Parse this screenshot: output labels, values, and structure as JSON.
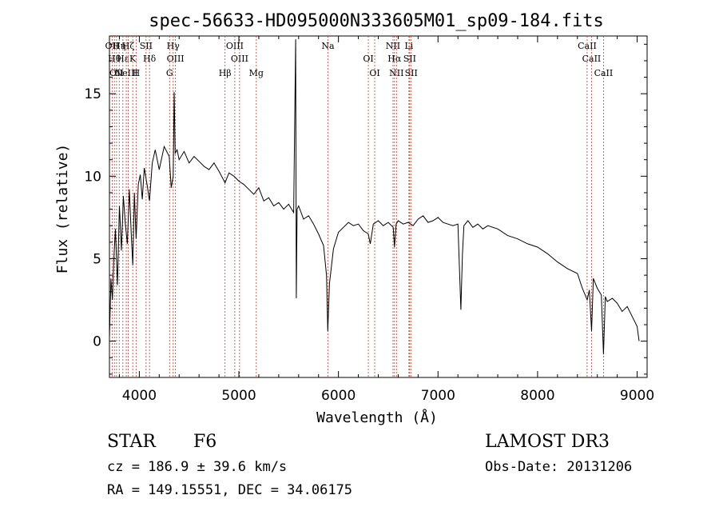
{
  "chart_data": {
    "type": "line",
    "title": "spec-56633-HD095000N333605M01_sp09-184.fits",
    "xlabel": "Wavelength (Å)",
    "ylabel": "Flux (relative)",
    "xlim": [
      3700,
      9100
    ],
    "ylim": [
      -2.2,
      18.5
    ],
    "xticks": [
      4000,
      5000,
      6000,
      7000,
      8000,
      9000
    ],
    "yticks": [
      0,
      5,
      10,
      15
    ],
    "grid": false,
    "series": [
      {
        "x": [
          3700,
          3715,
          3730,
          3745,
          3760,
          3780,
          3800,
          3820,
          3840,
          3860,
          3880,
          3900,
          3920,
          3934,
          3950,
          3968,
          3990,
          4010,
          4030,
          4050,
          4080,
          4102,
          4130,
          4160,
          4200,
          4250,
          4300,
          4320,
          4340,
          4350,
          4360,
          4380,
          4400,
          4450,
          4500,
          4550,
          4600,
          4650,
          4700,
          4750,
          4800,
          4861,
          4900,
          4950,
          5000,
          5050,
          5100,
          5150,
          5200,
          5250,
          5300,
          5350,
          5400,
          5450,
          5500,
          5550,
          5570,
          5577,
          5585,
          5600,
          5650,
          5700,
          5750,
          5800,
          5850,
          5880,
          5893,
          5910,
          5950,
          6000,
          6050,
          6100,
          6150,
          6200,
          6250,
          6300,
          6320,
          6350,
          6400,
          6450,
          6500,
          6550,
          6563,
          6580,
          6600,
          6650,
          6700,
          6750,
          6800,
          6850,
          6900,
          6950,
          7000,
          7050,
          7100,
          7150,
          7200,
          7230,
          7245,
          7260,
          7300,
          7350,
          7400,
          7450,
          7500,
          7600,
          7700,
          7800,
          7900,
          8000,
          8100,
          8200,
          8300,
          8400,
          8450,
          8498,
          8520,
          8542,
          8560,
          8600,
          8640,
          8662,
          8680,
          8700,
          8750,
          8800,
          8850,
          8900,
          8950,
          9000,
          9020
        ],
        "y": [
          0.2,
          3.8,
          2.5,
          5.1,
          6.8,
          3.4,
          8.2,
          5.5,
          8.8,
          7.1,
          5.9,
          9.2,
          6.4,
          4.6,
          9.0,
          6.2,
          9.5,
          10.1,
          8.6,
          10.5,
          9.4,
          8.5,
          10.8,
          11.6,
          10.4,
          11.8,
          11.2,
          9.3,
          10.0,
          15.1,
          11.4,
          11.6,
          11.0,
          11.5,
          10.8,
          11.2,
          10.9,
          10.6,
          10.4,
          10.8,
          10.3,
          9.6,
          10.2,
          10.0,
          9.7,
          9.5,
          9.2,
          8.9,
          9.3,
          8.5,
          8.7,
          8.2,
          8.4,
          8.0,
          8.3,
          7.8,
          18.3,
          2.6,
          8.0,
          8.2,
          7.4,
          7.6,
          7.1,
          6.5,
          5.8,
          4.0,
          0.6,
          3.5,
          5.6,
          6.6,
          6.9,
          7.2,
          7.0,
          7.1,
          6.7,
          6.5,
          5.9,
          7.1,
          7.3,
          7.0,
          7.2,
          6.9,
          5.7,
          7.1,
          7.3,
          7.1,
          7.2,
          7.0,
          7.4,
          7.6,
          7.2,
          7.3,
          7.5,
          7.2,
          7.1,
          7.0,
          7.1,
          1.9,
          5.2,
          7.0,
          7.3,
          6.9,
          7.1,
          6.8,
          7.0,
          6.8,
          6.4,
          6.2,
          5.9,
          5.7,
          5.3,
          4.8,
          4.4,
          4.1,
          3.2,
          2.5,
          3.1,
          0.6,
          3.8,
          3.2,
          2.8,
          -0.8,
          2.7,
          2.4,
          2.6,
          2.3,
          1.8,
          2.1,
          1.5,
          0.9,
          0.0
        ]
      }
    ],
    "lines": [
      {
        "x": 3727,
        "labels": [
          "OII"
        ]
      },
      {
        "x": 3750,
        "labels": [
          "Hθ"
        ]
      },
      {
        "x": 3771,
        "labels": [
          "OII"
        ]
      },
      {
        "x": 3798,
        "labels": [
          "Hη"
        ]
      },
      {
        "x": 3835,
        "labels": [
          "Hε"
        ]
      },
      {
        "x": 3869,
        "labels": [
          "NeIII"
        ]
      },
      {
        "x": 3889,
        "labels": [
          "Hζ"
        ]
      },
      {
        "x": 3934,
        "labels": [
          "K"
        ]
      },
      {
        "x": 3968,
        "labels": [
          "H"
        ]
      },
      {
        "x": 4068,
        "labels": [
          "SII"
        ]
      },
      {
        "x": 4102,
        "labels": [
          "Hδ"
        ]
      },
      {
        "x": 4304,
        "labels": [
          "G"
        ]
      },
      {
        "x": 4340,
        "labels": [
          "Hγ"
        ]
      },
      {
        "x": 4363,
        "labels": [
          "OIII"
        ]
      },
      {
        "x": 4861,
        "labels": [
          "Hβ"
        ]
      },
      {
        "x": 4959,
        "labels": [
          "OIII"
        ]
      },
      {
        "x": 5007,
        "labels": [
          "OIII"
        ]
      },
      {
        "x": 5175,
        "labels": [
          "Mg"
        ]
      },
      {
        "x": 5894,
        "labels": [
          "Na"
        ]
      },
      {
        "x": 6300,
        "labels": [
          "OI"
        ]
      },
      {
        "x": 6364,
        "labels": [
          "OI"
        ]
      },
      {
        "x": 6548,
        "labels": [
          "NII"
        ]
      },
      {
        "x": 6563,
        "labels": [
          "Hα"
        ]
      },
      {
        "x": 6583,
        "labels": [
          "NII"
        ]
      },
      {
        "x": 6708,
        "labels": [
          "Li"
        ]
      },
      {
        "x": 6716,
        "labels": [
          "SII"
        ]
      },
      {
        "x": 6731,
        "labels": [
          "SII"
        ]
      },
      {
        "x": 8498,
        "labels": [
          "CaII"
        ]
      },
      {
        "x": 8542,
        "labels": [
          "CaII"
        ]
      },
      {
        "x": 8662,
        "labels": [
          "CaII"
        ]
      }
    ]
  },
  "info": {
    "object_class": "STAR",
    "subclass": "F6",
    "survey": "LAMOST DR3",
    "redshift_text": "cz = 186.9 ± 39.6 km/s",
    "obs_date_text": "Obs-Date: 20131206",
    "coords_text": "RA = 149.15551, DEC =  34.06175"
  },
  "colors": {
    "spectrum": "#000000",
    "line_markers": "#c0392b",
    "axes": "#000000"
  }
}
